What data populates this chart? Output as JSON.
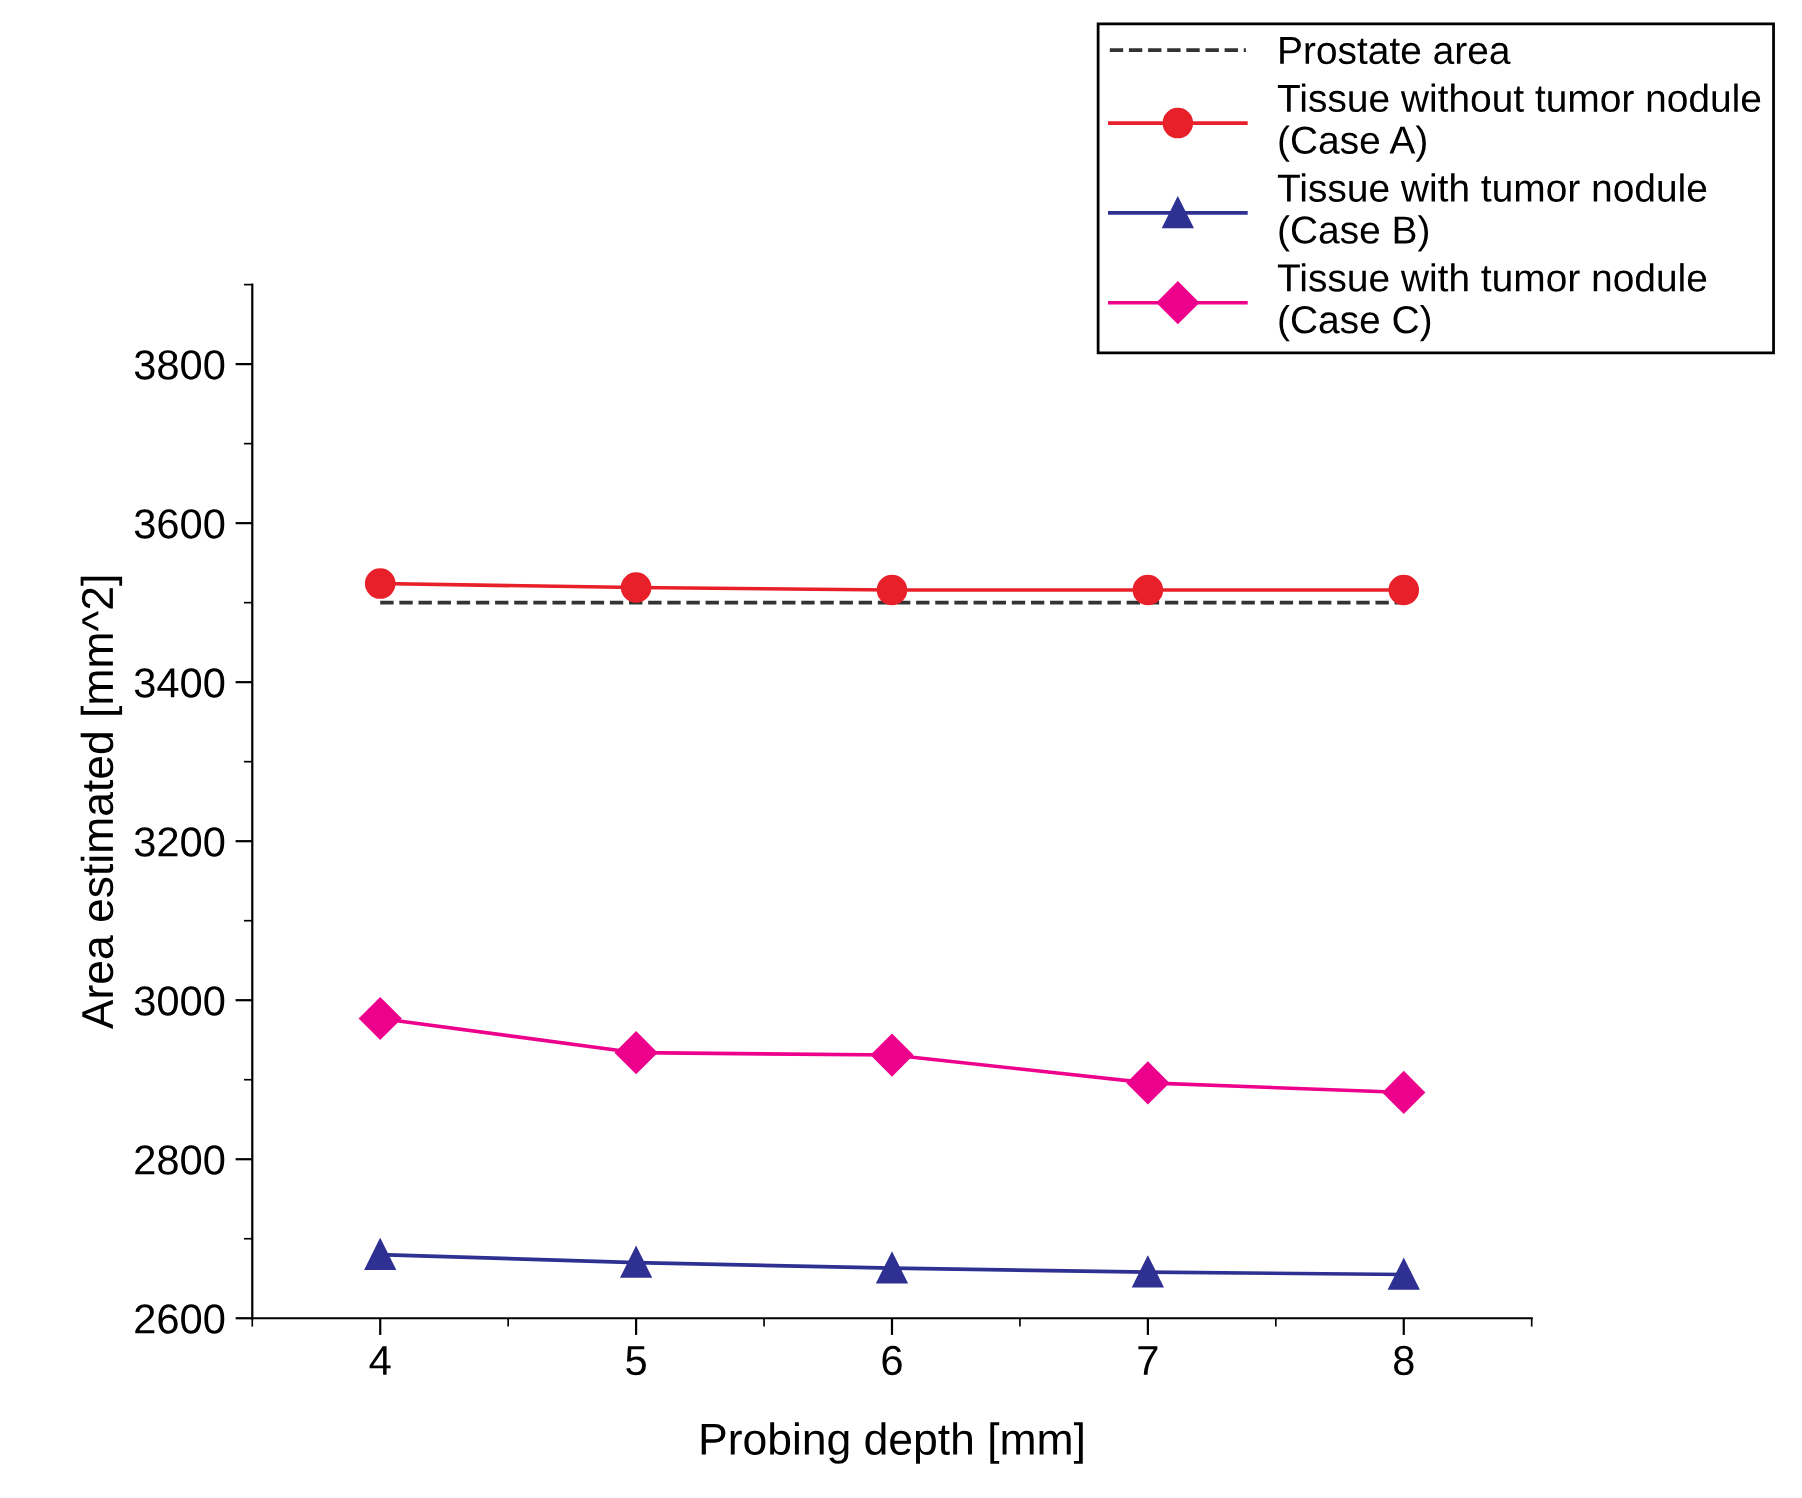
{
  "chart_data": {
    "type": "line",
    "xlabel": "Probing depth [mm]",
    "ylabel": "Area estimated [mm^2]",
    "x": [
      4,
      5,
      6,
      7,
      8
    ],
    "series": [
      {
        "name": "Prostate area",
        "color": "#333333",
        "values": [
          3500,
          3500,
          3500,
          3500,
          3500
        ],
        "line_style": "dashed",
        "marker": "none"
      },
      {
        "name": "Tissue without tumor nodule\n(Case A)",
        "color": "#e8202a",
        "values": [
          3524,
          3519,
          3516,
          3516,
          3516
        ],
        "marker": "circle"
      },
      {
        "name": "Tissue with tumor nodule\n(Case B)",
        "color": "#2e3192",
        "values": [
          2680,
          2670,
          2663,
          2658,
          2655
        ],
        "marker": "triangle"
      },
      {
        "name": "Tissue with tumor nodule\n(Case C)",
        "color": "#ec008c",
        "values": [
          2977,
          2934,
          2931,
          2896,
          2884
        ],
        "marker": "diamond"
      }
    ],
    "xlim": [
      3.5,
      8.5
    ],
    "xticks": [
      4,
      5,
      6,
      7,
      8
    ],
    "ylim": [
      2600,
      3900
    ],
    "yticks": [
      2600,
      2800,
      3000,
      3200,
      3400,
      3600,
      3800
    ],
    "grid": false,
    "legend": "top right",
    "line_style": "solid"
  }
}
